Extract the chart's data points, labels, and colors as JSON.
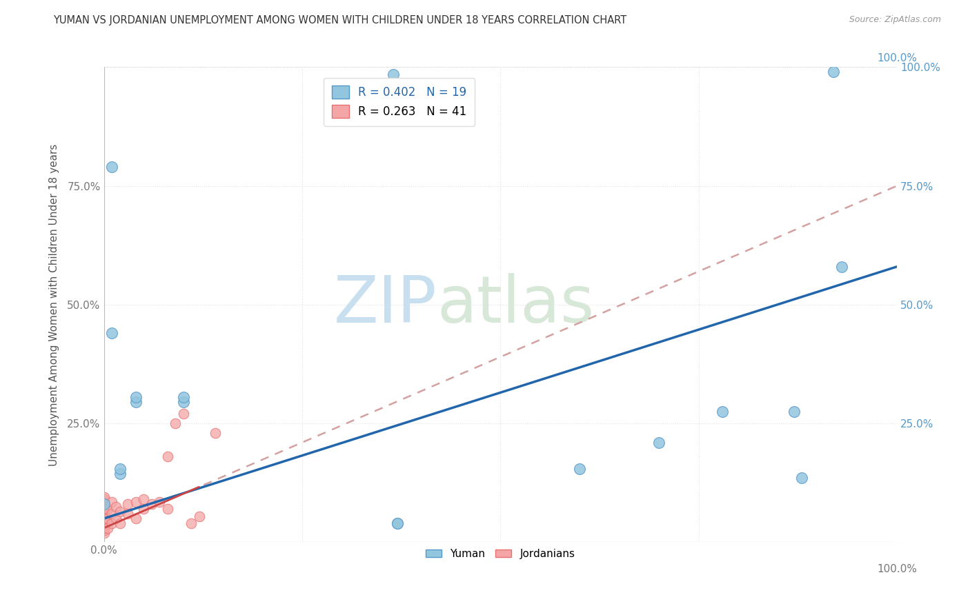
{
  "title": "YUMAN VS JORDANIAN UNEMPLOYMENT AMONG WOMEN WITH CHILDREN UNDER 18 YEARS CORRELATION CHART",
  "source": "Source: ZipAtlas.com",
  "ylabel": "Unemployment Among Women with Children Under 18 years",
  "watermark_zip": "ZIP",
  "watermark_atlas": "atlas",
  "legend_yuman": "Yuman",
  "legend_jordanians": "Jordanians",
  "r_yuman": 0.402,
  "n_yuman": 19,
  "r_jordan": 0.263,
  "n_jordan": 41,
  "yuman_color": "#92c5de",
  "jordan_color": "#f4a6a6",
  "jordan_edge_color": "#e87070",
  "trendline_yuman_color": "#2166ac",
  "trendline_jordan_color": "#e08080",
  "trendline_jordan_dash_color": "#ccbbbb",
  "yuman_slope": 0.53,
  "yuman_intercept": 0.05,
  "jordan_slope": 0.72,
  "jordan_intercept": 0.03,
  "yuman_points": [
    [
      0.01,
      0.79
    ],
    [
      0.01,
      0.44
    ],
    [
      0.04,
      0.295
    ],
    [
      0.04,
      0.305
    ],
    [
      0.1,
      0.295
    ],
    [
      0.1,
      0.305
    ],
    [
      0.37,
      0.04
    ],
    [
      0.6,
      0.155
    ],
    [
      0.7,
      0.21
    ],
    [
      0.78,
      0.275
    ],
    [
      0.87,
      0.275
    ],
    [
      0.365,
      0.985
    ],
    [
      0.92,
      0.99
    ],
    [
      0.0,
      0.08
    ],
    [
      0.37,
      0.04
    ],
    [
      0.88,
      0.135
    ],
    [
      0.93,
      0.58
    ],
    [
      0.02,
      0.145
    ],
    [
      0.02,
      0.155
    ]
  ],
  "jordan_points": [
    [
      0.0,
      0.02
    ],
    [
      0.0,
      0.025
    ],
    [
      0.0,
      0.03
    ],
    [
      0.0,
      0.035
    ],
    [
      0.0,
      0.04
    ],
    [
      0.0,
      0.045
    ],
    [
      0.0,
      0.05
    ],
    [
      0.0,
      0.055
    ],
    [
      0.0,
      0.06
    ],
    [
      0.0,
      0.065
    ],
    [
      0.0,
      0.07
    ],
    [
      0.0,
      0.075
    ],
    [
      0.0,
      0.08
    ],
    [
      0.0,
      0.085
    ],
    [
      0.0,
      0.09
    ],
    [
      0.0,
      0.095
    ],
    [
      0.005,
      0.03
    ],
    [
      0.005,
      0.05
    ],
    [
      0.005,
      0.07
    ],
    [
      0.01,
      0.04
    ],
    [
      0.01,
      0.06
    ],
    [
      0.01,
      0.085
    ],
    [
      0.015,
      0.05
    ],
    [
      0.015,
      0.075
    ],
    [
      0.02,
      0.04
    ],
    [
      0.02,
      0.065
    ],
    [
      0.03,
      0.06
    ],
    [
      0.03,
      0.08
    ],
    [
      0.04,
      0.05
    ],
    [
      0.04,
      0.085
    ],
    [
      0.05,
      0.07
    ],
    [
      0.05,
      0.09
    ],
    [
      0.06,
      0.08
    ],
    [
      0.07,
      0.085
    ],
    [
      0.08,
      0.07
    ],
    [
      0.08,
      0.18
    ],
    [
      0.09,
      0.25
    ],
    [
      0.1,
      0.27
    ],
    [
      0.11,
      0.04
    ],
    [
      0.12,
      0.055
    ],
    [
      0.14,
      0.23
    ]
  ],
  "xlim": [
    0,
    1.0
  ],
  "ylim": [
    0,
    1.0
  ],
  "xticks": [
    0,
    0.25,
    0.5,
    0.75,
    1.0
  ],
  "yticks": [
    0,
    0.25,
    0.5,
    0.75,
    1.0
  ],
  "background_color": "#ffffff",
  "grid_color": "#e0e0e0"
}
